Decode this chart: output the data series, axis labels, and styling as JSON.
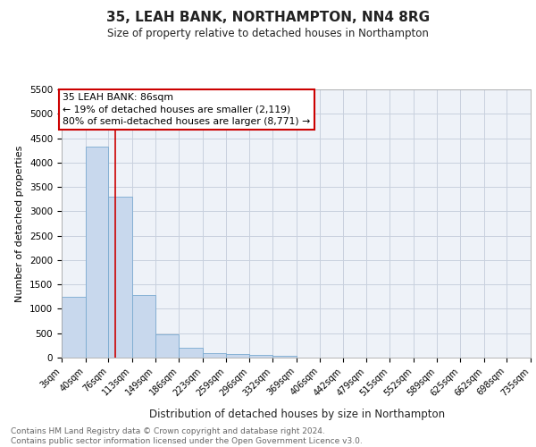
{
  "title": "35, LEAH BANK, NORTHAMPTON, NN4 8RG",
  "subtitle": "Size of property relative to detached houses in Northampton",
  "xlabel": "Distribution of detached houses by size in Northampton",
  "ylabel": "Number of detached properties",
  "bar_color": "#c8d8ed",
  "bar_edge_color": "#7aaad0",
  "background_color": "#ffffff",
  "plot_bg_color": "#eef2f8",
  "grid_color": "#c8d0de",
  "annotation_text": "35 LEAH BANK: 86sqm\n← 19% of detached houses are smaller (2,119)\n80% of semi-detached houses are larger (8,771) →",
  "vline_x": 86,
  "vline_color": "#cc0000",
  "footnote": "Contains HM Land Registry data © Crown copyright and database right 2024.\nContains public sector information licensed under the Open Government Licence v3.0.",
  "bin_edges": [
    3,
    40,
    76,
    113,
    149,
    186,
    223,
    259,
    296,
    332,
    369,
    406,
    442,
    479,
    515,
    552,
    589,
    625,
    662,
    698,
    735
  ],
  "bar_heights": [
    1250,
    4330,
    3300,
    1280,
    480,
    195,
    95,
    75,
    50,
    30,
    0,
    0,
    0,
    0,
    0,
    0,
    0,
    0,
    0,
    0
  ],
  "xlim_left": 3,
  "xlim_right": 735,
  "ylim_top": 5500,
  "yticks": [
    0,
    500,
    1000,
    1500,
    2000,
    2500,
    3000,
    3500,
    4000,
    4500,
    5000,
    5500
  ],
  "title_fontsize": 11,
  "subtitle_fontsize": 8.5,
  "footnote_fontsize": 6.5
}
